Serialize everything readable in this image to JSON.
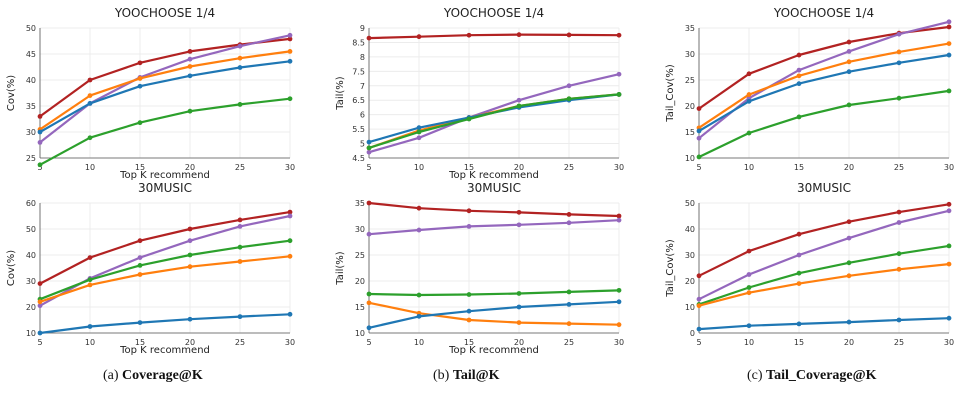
{
  "colors": {
    "red": "#b22222",
    "purple": "#9467bd",
    "orange": "#ff7f0e",
    "blue": "#1f77b4",
    "green": "#2ca02c"
  },
  "captions": [
    {
      "label": "(a)",
      "metric": "Coverage@K"
    },
    {
      "label": "(b)",
      "metric": "Tail@K"
    },
    {
      "label": "(c)",
      "metric": "Tail_Coverage@K"
    }
  ],
  "chart_data": [
    {
      "type": "line",
      "title": "YOOCHOOSE 1/4",
      "xlabel": "Top K recommend",
      "ylabel": "Cov(%)",
      "x": [
        5,
        10,
        15,
        20,
        25,
        30
      ],
      "ylim": [
        25,
        50
      ],
      "yticks": [
        25,
        30,
        35,
        40,
        45,
        50
      ],
      "grid": true,
      "series": [
        {
          "color": "red",
          "values": [
            33.0,
            40.0,
            43.3,
            45.5,
            46.8,
            47.9
          ]
        },
        {
          "color": "purple",
          "values": [
            28.0,
            35.5,
            40.5,
            44.0,
            46.5,
            48.6
          ]
        },
        {
          "color": "orange",
          "values": [
            30.5,
            37.0,
            40.3,
            42.6,
            44.2,
            45.5
          ]
        },
        {
          "color": "blue",
          "values": [
            30.0,
            35.5,
            38.8,
            40.8,
            42.4,
            43.6
          ]
        },
        {
          "color": "green",
          "values": [
            23.7,
            28.9,
            31.8,
            34.0,
            35.3,
            36.4
          ]
        }
      ]
    },
    {
      "type": "line",
      "title": "YOOCHOOSE 1/4",
      "xlabel": "Top K recommend",
      "ylabel": "Tail(%)",
      "x": [
        5,
        10,
        15,
        20,
        25,
        30
      ],
      "ylim": [
        4.5,
        9
      ],
      "yticks": [
        4.5,
        5,
        5.5,
        6,
        6.5,
        7,
        7.5,
        8,
        8.5,
        9
      ],
      "grid": true,
      "series": [
        {
          "color": "red",
          "values": [
            8.65,
            8.7,
            8.75,
            8.77,
            8.76,
            8.75
          ]
        },
        {
          "color": "purple",
          "values": [
            4.7,
            5.2,
            5.9,
            6.5,
            7.0,
            7.4
          ]
        },
        {
          "color": "orange",
          "values": [
            4.85,
            5.45,
            5.9,
            6.3,
            6.55,
            6.7
          ]
        },
        {
          "color": "blue",
          "values": [
            5.05,
            5.55,
            5.9,
            6.25,
            6.5,
            6.7
          ]
        },
        {
          "color": "green",
          "values": [
            4.85,
            5.4,
            5.85,
            6.3,
            6.55,
            6.7
          ]
        }
      ]
    },
    {
      "type": "line",
      "title": "YOOCHOOSE 1/4",
      "xlabel": "",
      "ylabel": "Tail_Cov(%)",
      "x": [
        5,
        10,
        15,
        20,
        25,
        30
      ],
      "ylim": [
        10,
        35
      ],
      "yticks": [
        10,
        15,
        20,
        25,
        30,
        35
      ],
      "grid": true,
      "series": [
        {
          "color": "red",
          "values": [
            19.5,
            26.2,
            29.8,
            32.3,
            34.0,
            35.2
          ]
        },
        {
          "color": "purple",
          "values": [
            13.8,
            21.5,
            26.9,
            30.5,
            33.8,
            36.2
          ]
        },
        {
          "color": "orange",
          "values": [
            15.8,
            22.2,
            25.8,
            28.5,
            30.4,
            32.0
          ]
        },
        {
          "color": "blue",
          "values": [
            15.2,
            20.9,
            24.3,
            26.6,
            28.3,
            29.8
          ]
        },
        {
          "color": "green",
          "values": [
            10.2,
            14.8,
            17.9,
            20.2,
            21.5,
            22.9
          ]
        }
      ]
    },
    {
      "type": "line",
      "title": "30MUSIC",
      "xlabel": "Top K recommend",
      "ylabel": "Cov(%)",
      "x": [
        5,
        10,
        15,
        20,
        25,
        30
      ],
      "ylim": [
        10,
        60
      ],
      "yticks": [
        10,
        20,
        30,
        40,
        50,
        60
      ],
      "grid": true,
      "series": [
        {
          "color": "red",
          "values": [
            29.0,
            39.0,
            45.5,
            50.0,
            53.5,
            56.5
          ]
        },
        {
          "color": "purple",
          "values": [
            20.5,
            31.0,
            39.0,
            45.5,
            51.0,
            55.0
          ]
        },
        {
          "color": "green",
          "values": [
            23.0,
            30.5,
            36.0,
            40.0,
            43.0,
            45.5
          ]
        },
        {
          "color": "orange",
          "values": [
            22.0,
            28.5,
            32.5,
            35.5,
            37.5,
            39.5
          ]
        },
        {
          "color": "blue",
          "values": [
            10.0,
            12.5,
            14.0,
            15.3,
            16.3,
            17.2
          ]
        }
      ]
    },
    {
      "type": "line",
      "title": "30MUSIC",
      "xlabel": "Top K recommend",
      "ylabel": "Tail(%)",
      "x": [
        5,
        10,
        15,
        20,
        25,
        30
      ],
      "ylim": [
        10,
        35
      ],
      "yticks": [
        10,
        15,
        20,
        25,
        30,
        35
      ],
      "grid": true,
      "series": [
        {
          "color": "red",
          "values": [
            35.0,
            34.0,
            33.5,
            33.2,
            32.8,
            32.5
          ]
        },
        {
          "color": "purple",
          "values": [
            29.0,
            29.8,
            30.5,
            30.8,
            31.2,
            31.7
          ]
        },
        {
          "color": "green",
          "values": [
            17.5,
            17.3,
            17.4,
            17.6,
            17.9,
            18.2
          ]
        },
        {
          "color": "orange",
          "values": [
            15.8,
            13.8,
            12.5,
            12.0,
            11.8,
            11.6
          ]
        },
        {
          "color": "blue",
          "values": [
            11.0,
            13.2,
            14.2,
            15.0,
            15.5,
            16.0
          ]
        }
      ]
    },
    {
      "type": "line",
      "title": "30MUSIC",
      "xlabel": "",
      "ylabel": "Tail_Cov(%)",
      "x": [
        5,
        10,
        15,
        20,
        25,
        30
      ],
      "ylim": [
        0,
        50
      ],
      "yticks": [
        0,
        10,
        20,
        30,
        40,
        50
      ],
      "grid": true,
      "series": [
        {
          "color": "red",
          "values": [
            22.0,
            31.5,
            38.0,
            42.8,
            46.5,
            49.5
          ]
        },
        {
          "color": "purple",
          "values": [
            13.0,
            22.5,
            30.0,
            36.5,
            42.5,
            47.0
          ]
        },
        {
          "color": "green",
          "values": [
            11.0,
            17.5,
            23.0,
            27.0,
            30.5,
            33.5
          ]
        },
        {
          "color": "orange",
          "values": [
            10.5,
            15.5,
            19.0,
            22.0,
            24.5,
            26.5
          ]
        },
        {
          "color": "blue",
          "values": [
            1.5,
            2.8,
            3.5,
            4.2,
            5.0,
            5.7
          ]
        }
      ]
    }
  ]
}
